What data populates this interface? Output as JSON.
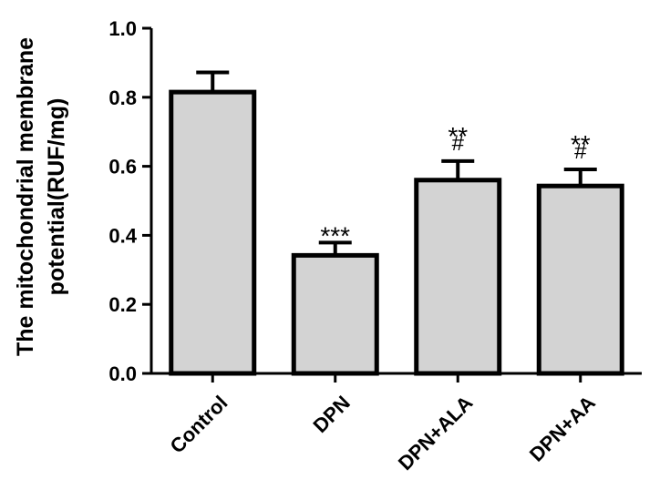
{
  "chart_data": {
    "type": "bar",
    "title": "",
    "xlabel": "",
    "ylabel_lines": [
      "The mitochondrial membrane",
      "potential(RUF/mg)"
    ],
    "categories": [
      "Control",
      "DPN",
      "DPN+ALA",
      "DPN+AA"
    ],
    "values": [
      0.815,
      0.342,
      0.56,
      0.543
    ],
    "errors": [
      0.057,
      0.037,
      0.055,
      0.048
    ],
    "annotations": [
      {
        "sig": "",
        "hash": ""
      },
      {
        "sig": "***",
        "hash": ""
      },
      {
        "sig": "**",
        "hash": "#"
      },
      {
        "sig": "**",
        "hash": "#"
      }
    ],
    "ylim": [
      0,
      1.0
    ],
    "yticks": [
      0.0,
      0.2,
      0.4,
      0.6,
      0.8,
      1.0
    ],
    "ytick_labels": [
      "0.0",
      "0.2",
      "0.4",
      "0.6",
      "0.8",
      "1.0"
    ],
    "grid": false,
    "bar_color": "#d3d3d3",
    "edge_color": "#000000"
  }
}
